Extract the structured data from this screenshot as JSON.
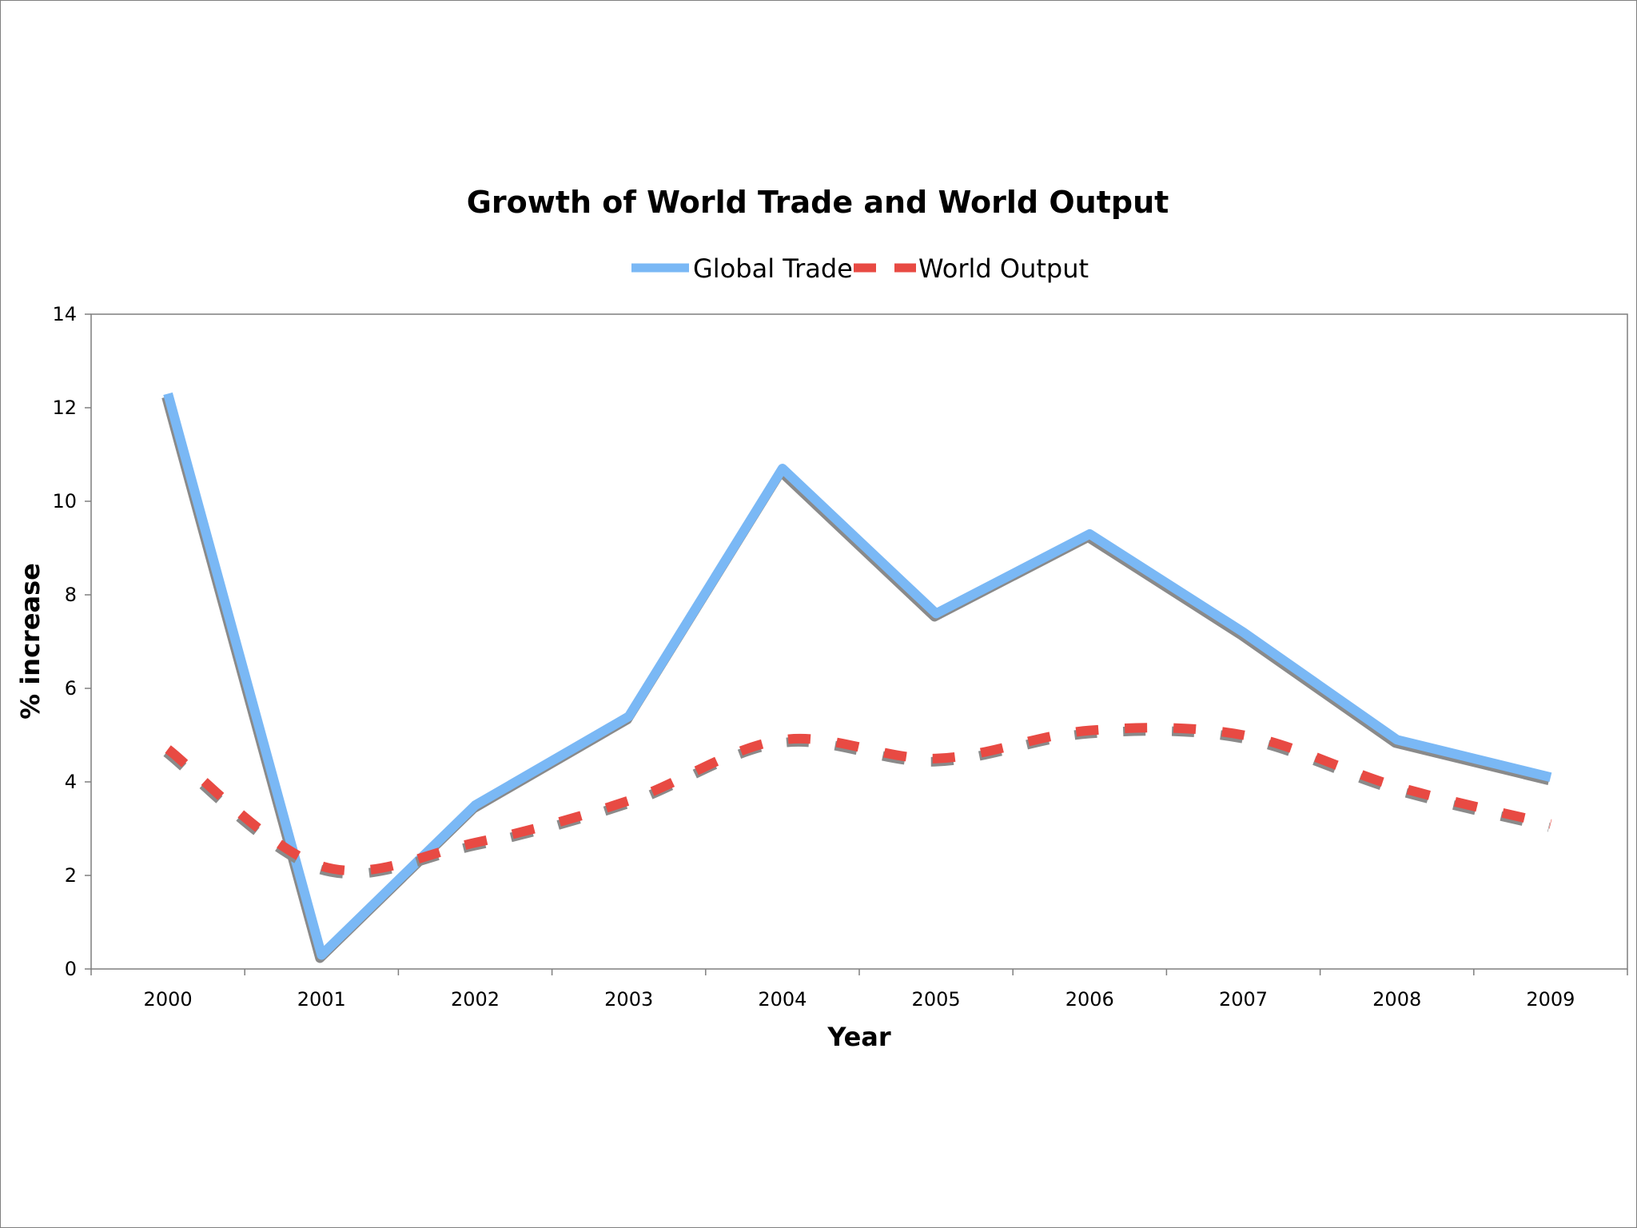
{
  "chart_data": {
    "type": "line",
    "title": "Growth of World Trade and World Output",
    "xlabel": "Year",
    "ylabel": "% increase",
    "categories": [
      "2000",
      "2001",
      "2002",
      "2003",
      "2004",
      "2005",
      "2006",
      "2007",
      "2008",
      "2009"
    ],
    "yticks": [
      "0",
      "2",
      "4",
      "6",
      "8",
      "10",
      "12",
      "14"
    ],
    "ylim": [
      0,
      14
    ],
    "grid": false,
    "legend_position": "top",
    "series": [
      {
        "name": "Global Trade",
        "style": "solid",
        "color": "#7ab8f5",
        "values": [
          12.3,
          0.3,
          3.5,
          5.4,
          10.7,
          7.6,
          9.3,
          7.2,
          4.9,
          4.1
        ]
      },
      {
        "name": "World Output",
        "style": "dashed",
        "color": "#e84a43",
        "values": [
          4.7,
          2.2,
          2.7,
          3.6,
          4.9,
          4.5,
          5.1,
          5.0,
          3.9,
          3.1
        ]
      }
    ]
  }
}
